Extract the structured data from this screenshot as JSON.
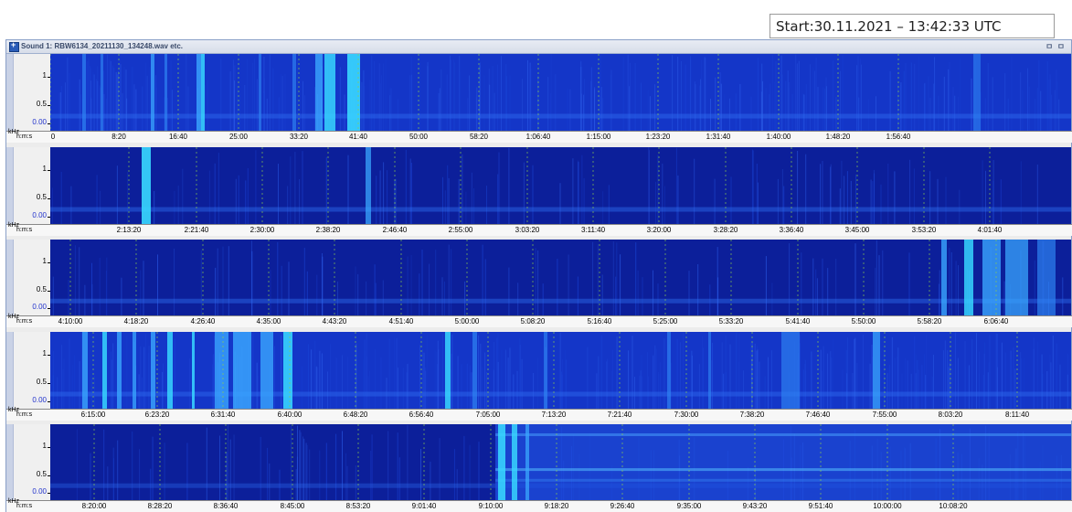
{
  "start_label": "Start:30.11.2021 – 13:42:33 UTC",
  "window": {
    "title": "Sound 1: RBW6134_20211130_134248.wav etc.",
    "controls": "ㅁ ㅁ"
  },
  "axes": {
    "y_labels": [
      "1",
      "0.5",
      "0.00"
    ],
    "x_unit": "kHz",
    "x_unit2": "h:m:s"
  },
  "panels": [
    {
      "ticks": [
        "0",
        "8:20",
        "16:40",
        "25:00",
        "33:20",
        "41:40",
        "50:00",
        "58:20",
        "1:06:40",
        "1:15:00",
        "1:23:20",
        "1:31:40",
        "1:40:00",
        "1:48:20",
        "1:56:40"
      ]
    },
    {
      "ticks": [
        "2:13:20",
        "2:21:40",
        "2:30:00",
        "2:38:20",
        "2:46:40",
        "2:55:00",
        "3:03:20",
        "3:11:40",
        "3:20:00",
        "3:28:20",
        "3:36:40",
        "3:45:00",
        "3:53:20",
        "4:01:40"
      ]
    },
    {
      "ticks": [
        "4:10:00",
        "4:18:20",
        "4:26:40",
        "4:35:00",
        "4:43:20",
        "4:51:40",
        "5:00:00",
        "5:08:20",
        "5:16:40",
        "5:25:00",
        "5:33:20",
        "5:41:40",
        "5:50:00",
        "5:58:20",
        "6:06:40"
      ]
    },
    {
      "ticks": [
        "6:15:00",
        "6:23:20",
        "6:31:40",
        "6:40:00",
        "6:48:20",
        "6:56:40",
        "7:05:00",
        "7:13:20",
        "7:21:40",
        "7:30:00",
        "7:38:20",
        "7:46:40",
        "7:55:00",
        "8:03:20",
        "8:11:40"
      ]
    },
    {
      "ticks": [
        "8:20:00",
        "8:28:20",
        "8:36:40",
        "8:45:00",
        "8:53:20",
        "9:01:40",
        "9:10:00",
        "9:18:20",
        "9:26:40",
        "9:35:00",
        "9:43:20",
        "9:51:40",
        "10:00:00",
        "10:08:20"
      ]
    }
  ]
}
